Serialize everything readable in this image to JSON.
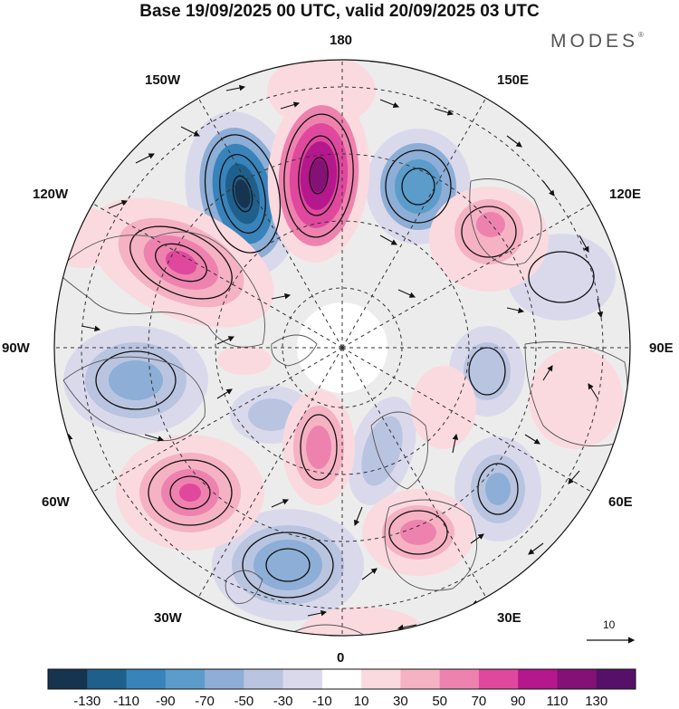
{
  "header": {
    "title": "Base 19/09/2025 00 UTC, valid 20/09/2025 03 UTC",
    "brand": "MODES"
  },
  "map": {
    "projection": "north polar stereographic",
    "longitude_labels": {
      "top": "180",
      "bottom": "0",
      "left": "90W",
      "right": "90E",
      "upper_left": "150W",
      "upper_right": "150E",
      "mid_left": "120W",
      "mid_right": "120E",
      "lower_left": "60W",
      "lower_right": "60E",
      "bottom_left": "30W",
      "bottom_right": "30E"
    },
    "vector_reference": {
      "label": "10"
    }
  },
  "colorbar": {
    "labels": [
      "-130",
      "-110",
      "-90",
      "-70",
      "-50",
      "-30",
      "-10",
      "10",
      "30",
      "50",
      "70",
      "90",
      "110",
      "130"
    ],
    "colors": [
      "#16334f",
      "#1f5f8b",
      "#3883ba",
      "#5b9ccb",
      "#8daed6",
      "#b9c4e0",
      "#dad9ec",
      "#ffffff",
      "#fadadf",
      "#f5b2c3",
      "#ee82ae",
      "#e0489d",
      "#b5178c",
      "#841175",
      "#561069"
    ]
  },
  "colors": {
    "negative_strong": "#2a6e9e",
    "positive_strong": "#a0157f",
    "land": "#ececec",
    "grid": "#333333"
  }
}
